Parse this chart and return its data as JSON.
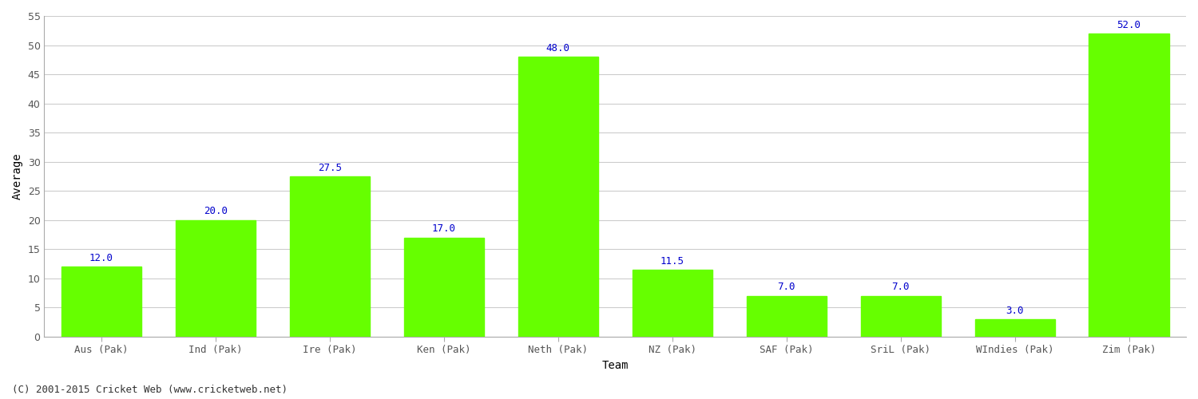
{
  "categories": [
    "Aus (Pak)",
    "Ind (Pak)",
    "Ire (Pak)",
    "Ken (Pak)",
    "Neth (Pak)",
    "NZ (Pak)",
    "SAF (Pak)",
    "SriL (Pak)",
    "WIndies (Pak)",
    "Zim (Pak)"
  ],
  "values": [
    12.0,
    20.0,
    27.5,
    17.0,
    48.0,
    11.5,
    7.0,
    7.0,
    3.0,
    52.0
  ],
  "bar_color": "#66ff00",
  "label_color": "#0000cc",
  "xlabel": "Team",
  "ylabel": "Average",
  "ylim": [
    0,
    55
  ],
  "yticks": [
    0,
    5,
    10,
    15,
    20,
    25,
    30,
    35,
    40,
    45,
    50,
    55
  ],
  "background_color": "#ffffff",
  "grid_color": "#cccccc",
  "footer": "(C) 2001-2015 Cricket Web (www.cricketweb.net)",
  "bar_width": 0.7,
  "label_fontsize": 9,
  "axis_fontsize": 9,
  "xlabel_fontsize": 10,
  "ylabel_fontsize": 10,
  "spine_color": "#aaaaaa",
  "tick_color": "#555555"
}
